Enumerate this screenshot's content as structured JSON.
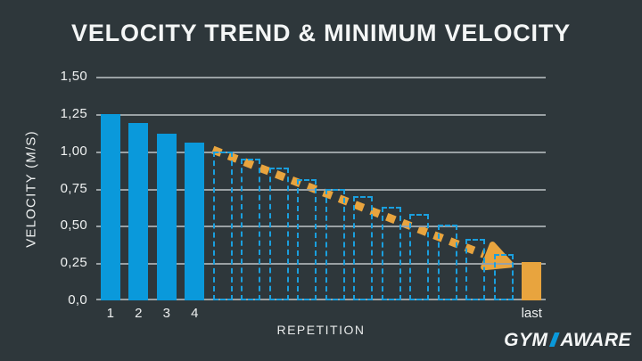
{
  "title": "VELOCITY TREND & MINIMUM VELOCITY",
  "colors": {
    "background": "#2e373b",
    "bar_blue": "#0a99db",
    "dashed_blue": "#1a9fde",
    "bar_orange": "#e8a43e",
    "trend_orange": "#e8a43e",
    "gridline": "#9aa1a4",
    "text": "#eff1f1",
    "logo_blue": "#0a99db"
  },
  "logo": {
    "part1": "GYM",
    "part2": "AWARE",
    "slash_icon": "blue-wedge"
  },
  "chart_data": {
    "type": "bar",
    "title": "VELOCITY TREND & MINIMUM VELOCITY",
    "xlabel": "REPETITION",
    "ylabel": "VELOCITY (M/S)",
    "ylim": [
      0,
      1.5
    ],
    "grid": true,
    "legend": false,
    "y_ticks": [
      {
        "label": "1,50",
        "value": 1.5
      },
      {
        "label": "1,25",
        "value": 1.25
      },
      {
        "label": "1,00",
        "value": 1.0
      },
      {
        "label": "0,75",
        "value": 0.75
      },
      {
        "label": "0,50",
        "value": 0.5
      },
      {
        "label": "0,25",
        "value": 0.25
      },
      {
        "label": "0,0",
        "value": 0
      }
    ],
    "bars": [
      {
        "label": "1",
        "value": 1.25,
        "style": "solid"
      },
      {
        "label": "2",
        "value": 1.19,
        "style": "solid"
      },
      {
        "label": "3",
        "value": 1.12,
        "style": "solid"
      },
      {
        "label": "4",
        "value": 1.06,
        "style": "solid"
      },
      {
        "label": "",
        "value": 1.0,
        "style": "dashed"
      },
      {
        "label": "",
        "value": 0.95,
        "style": "dashed"
      },
      {
        "label": "",
        "value": 0.89,
        "style": "dashed"
      },
      {
        "label": "",
        "value": 0.81,
        "style": "dashed"
      },
      {
        "label": "",
        "value": 0.75,
        "style": "dashed"
      },
      {
        "label": "",
        "value": 0.7,
        "style": "dashed"
      },
      {
        "label": "",
        "value": 0.63,
        "style": "dashed"
      },
      {
        "label": "",
        "value": 0.58,
        "style": "dashed"
      },
      {
        "label": "",
        "value": 0.51,
        "style": "dashed"
      },
      {
        "label": "",
        "value": 0.41,
        "style": "dashed"
      },
      {
        "label": "",
        "value": 0.31,
        "style": "dashed"
      },
      {
        "label": "last",
        "value": 0.26,
        "style": "highlight"
      }
    ],
    "trend_arrow": {
      "style": "dashed",
      "color": "#e8a43e",
      "start": {
        "x_bar": 4.15,
        "value": 1.01
      },
      "end": {
        "x_bar": 14.75,
        "value": 0.24
      }
    }
  }
}
